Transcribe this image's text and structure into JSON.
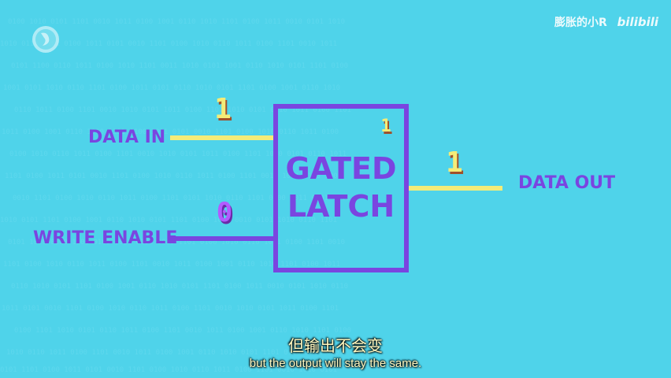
{
  "colors": {
    "background": "#4fd3ea",
    "wire_high": "#f4ec78",
    "wire_low": "#7a45e0",
    "latch_border": "#7a45e0",
    "label_text": "#7a45e0",
    "subtitle_text": "#fff8c0"
  },
  "inputs": {
    "data_in": {
      "label": "DATA IN",
      "value": "1"
    },
    "write_enable": {
      "label": "WRITE ENABLE",
      "value": "0"
    }
  },
  "latch": {
    "title_line1": "GATED",
    "title_line2": "LATCH",
    "stored_value": "1"
  },
  "output": {
    "data_out": {
      "label": "DATA OUT",
      "value": "1"
    }
  },
  "watermark": {
    "uploader": "膨胀的小R",
    "brand": "bilibili"
  },
  "logo_icon": "pbs-logo-icon",
  "subtitles": {
    "zh": "但输出不会变",
    "en": "but the output will stay the same."
  }
}
